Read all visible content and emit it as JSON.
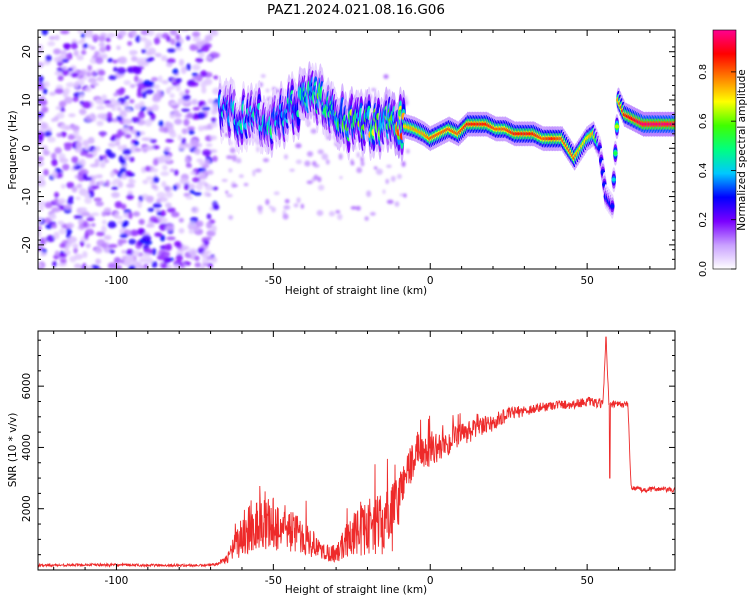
{
  "title": "PAZ1.2024.021.08.16.G06",
  "colorbar": {
    "label": "Normalized spectral amplitude",
    "ticks": [
      "0.0",
      "0.2",
      "0.4",
      "0.6",
      "0.8"
    ],
    "tick_values": [
      0.0,
      0.2,
      0.4,
      0.6,
      0.8
    ],
    "range": [
      0,
      0.97
    ],
    "colors": [
      "#ffffff",
      "#c9a0ff",
      "#7a00ff",
      "#0000ff",
      "#00c8ff",
      "#00ff80",
      "#40ff00",
      "#ffff00",
      "#ff8000",
      "#ff0000",
      "#ff0090"
    ]
  },
  "chart_data": [
    {
      "type": "heatmap",
      "xlabel": "Height of straight line (km)",
      "ylabel": "Frequency (Hz)",
      "xlim": [
        -125,
        78
      ],
      "ylim": [
        -25,
        24.5
      ],
      "xticks": [
        -100,
        -50,
        0,
        50
      ],
      "xtick_labels": [
        "-100",
        "-50",
        "0",
        "50"
      ],
      "yticks": [
        -20,
        -10,
        0,
        10,
        20
      ],
      "ytick_labels": [
        "-20",
        "-10",
        "0",
        "10",
        "20"
      ],
      "grid": false,
      "ridge": {
        "description_values": "dominant frequency ridge (Hz) vs height (km)",
        "x": [
          -67,
          -60,
          -55,
          -50,
          -45,
          -40,
          -35,
          -30,
          -25,
          -20,
          -15,
          -10,
          -5,
          -2,
          0,
          3,
          6,
          9,
          12,
          15,
          18,
          21,
          24,
          27,
          30,
          33,
          36,
          39,
          42,
          44,
          46,
          48,
          50,
          52,
          54,
          56,
          58,
          60,
          62,
          65,
          68,
          72,
          78
        ],
        "y": [
          8,
          6,
          7,
          5,
          8,
          10,
          11,
          6,
          5,
          5,
          5,
          5,
          4,
          3,
          2,
          3,
          4,
          3,
          5,
          5,
          5,
          4,
          4,
          3,
          3,
          3,
          2,
          2,
          2,
          0,
          -2,
          0,
          2,
          3,
          0,
          -10,
          -12,
          10,
          7,
          6,
          5,
          5,
          5
        ],
        "peak_amplitude": [
          0.35,
          0.4,
          0.4,
          0.45,
          0.45,
          0.5,
          0.5,
          0.5,
          0.55,
          0.6,
          0.55,
          0.7,
          0.75,
          0.75,
          0.8,
          0.8,
          0.8,
          0.8,
          0.85,
          0.85,
          0.85,
          0.8,
          0.8,
          0.85,
          0.85,
          0.85,
          0.8,
          0.85,
          0.8,
          0.8,
          0.8,
          0.7,
          0.7,
          0.75,
          0.3,
          0.3,
          0.3,
          0.75,
          0.85,
          0.9,
          0.95,
          0.95,
          0.95
        ]
      },
      "noise_region": {
        "x_range": [
          -125,
          -68
        ],
        "y_range": [
          -25,
          24.5
        ],
        "amplitude_range": [
          0.05,
          0.3
        ]
      }
    },
    {
      "type": "line",
      "xlabel": "Height of straight line (km)",
      "ylabel": "SNR (10 * v/v)",
      "xlim": [
        -125,
        78
      ],
      "ylim": [
        0,
        7800
      ],
      "xticks": [
        -100,
        -50,
        0,
        50
      ],
      "xtick_labels": [
        "-100",
        "-50",
        "0",
        "50"
      ],
      "yticks": [
        2000,
        4000,
        6000
      ],
      "ytick_labels": [
        "2000",
        "4000",
        "6000"
      ],
      "color": "#ee2a2a",
      "grid": false,
      "series": [
        {
          "x": [
            -125,
            -110,
            -95,
            -80,
            -70,
            -65,
            -60,
            -55,
            -50,
            -45,
            -40,
            -35,
            -30,
            -25,
            -20,
            -15,
            -12,
            -10,
            -8,
            -5,
            0,
            5,
            10,
            15,
            20,
            25,
            30,
            35,
            40,
            45,
            50,
            55,
            56,
            57,
            58,
            60,
            63,
            64,
            68,
            72,
            78
          ],
          "y": [
            150,
            170,
            160,
            150,
            150,
            350,
            1100,
            1500,
            1500,
            1300,
            1100,
            600,
            550,
            1100,
            1400,
            1500,
            1700,
            2300,
            3200,
            3600,
            3900,
            4100,
            4400,
            4600,
            4800,
            5100,
            5200,
            5300,
            5400,
            5400,
            5500,
            5400,
            7600,
            5300,
            5400,
            5400,
            5400,
            2700,
            2600,
            2650,
            2600
          ],
          "noise_amplitude": [
            40,
            40,
            40,
            40,
            40,
            120,
            700,
            900,
            900,
            700,
            600,
            300,
            300,
            700,
            900,
            1000,
            1100,
            900,
            700,
            600,
            500,
            450,
            400,
            350,
            300,
            200,
            180,
            160,
            150,
            150,
            150,
            150,
            0,
            150,
            120,
            100,
            100,
            80,
            80,
            80,
            80
          ]
        }
      ]
    }
  ]
}
